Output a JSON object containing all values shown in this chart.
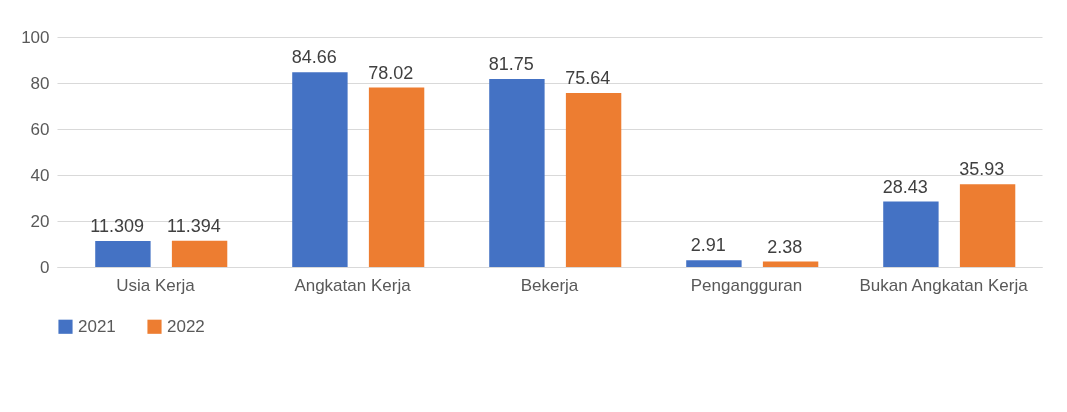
{
  "chart_data": {
    "type": "bar",
    "categories": [
      "Usia Kerja",
      "Angkatan Kerja",
      "Bekerja",
      "Pengangguran",
      "Bukan Angkatan Kerja"
    ],
    "series": [
      {
        "name": "2021",
        "color": "#4472c4",
        "values": [
          11.309,
          84.66,
          81.75,
          2.91,
          28.43
        ]
      },
      {
        "name": "2022",
        "color": "#ed7d31",
        "values": [
          11.394,
          78.02,
          75.64,
          2.38,
          35.93
        ]
      }
    ],
    "ylim": [
      0,
      100
    ],
    "yticks": [
      0,
      20,
      40,
      60,
      80,
      100
    ],
    "grid": "y",
    "legend": "bottom",
    "data_labels": true
  }
}
